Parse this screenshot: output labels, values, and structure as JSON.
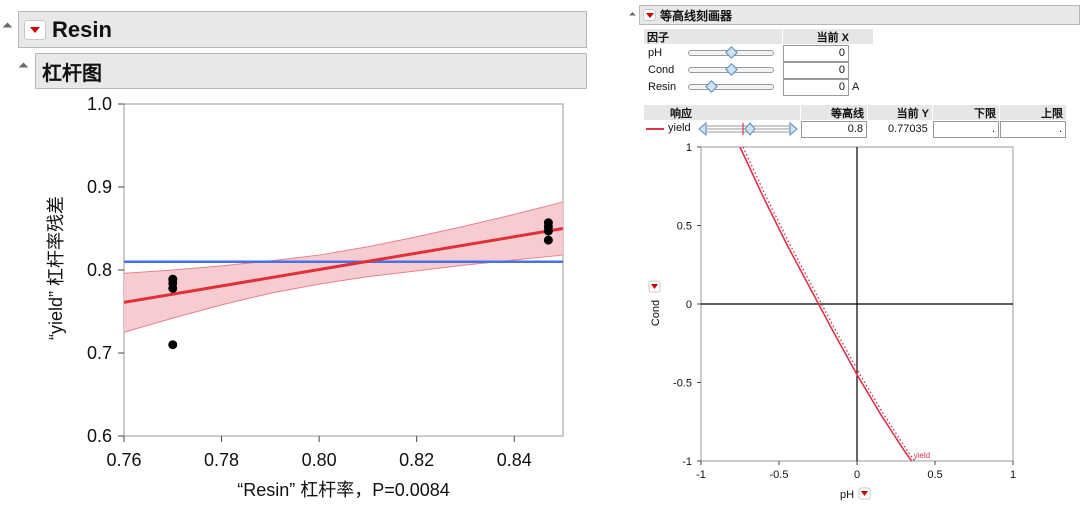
{
  "left": {
    "outline_title": "Resin",
    "sub_title": "杠杆图"
  },
  "right": {
    "outline_title": "等高线刻画器",
    "factor_table": {
      "header_factor": "因子",
      "header_current": "当前 X",
      "rows": [
        {
          "name": "pH",
          "value": "0",
          "unit": ""
        },
        {
          "name": "Cond",
          "value": "0",
          "unit": ""
        },
        {
          "name": "Resin",
          "value": "0",
          "unit": "A"
        }
      ]
    },
    "response_table": {
      "header_response": "响应",
      "header_contour": "等高线",
      "header_current_y": "当前 Y",
      "header_lower": "下限",
      "header_upper": "上限",
      "row": {
        "name": "yield",
        "contour": "0.8",
        "current_y": "0.77035",
        "lower": ".",
        "upper": "."
      }
    }
  },
  "chart_data": [
    {
      "type": "scatter",
      "title": "",
      "xlabel": "“Resin” 杠杆率，P=0.0084",
      "ylabel": "“yield” 杠杆率残差",
      "xlim": [
        0.76,
        0.85
      ],
      "ylim": [
        0.6,
        1.0
      ],
      "x_ticks": [
        "0.76",
        "0.78",
        "0.80",
        "0.82",
        "0.84"
      ],
      "y_ticks": [
        "0.6",
        "0.7",
        "0.8",
        "0.9",
        "1.0"
      ],
      "points": [
        {
          "x": 0.77,
          "y": 0.789
        },
        {
          "x": 0.77,
          "y": 0.784
        },
        {
          "x": 0.77,
          "y": 0.778
        },
        {
          "x": 0.77,
          "y": 0.71
        },
        {
          "x": 0.847,
          "y": 0.857
        },
        {
          "x": 0.847,
          "y": 0.852
        },
        {
          "x": 0.847,
          "y": 0.847
        },
        {
          "x": 0.847,
          "y": 0.836
        }
      ],
      "mean_line": {
        "y": 0.81,
        "color": "#4472e8"
      },
      "fit_line": {
        "x": [
          0.76,
          0.85
        ],
        "y": [
          0.761,
          0.85
        ],
        "color": "#e0303a"
      },
      "confidence_band": {
        "x": [
          0.76,
          0.77,
          0.78,
          0.79,
          0.8,
          0.81,
          0.82,
          0.83,
          0.84,
          0.85
        ],
        "upper": [
          0.796,
          0.8,
          0.805,
          0.811,
          0.818,
          0.828,
          0.84,
          0.853,
          0.867,
          0.882
        ],
        "lower": [
          0.725,
          0.742,
          0.758,
          0.772,
          0.783,
          0.792,
          0.799,
          0.806,
          0.812,
          0.818
        ],
        "color": "#f6c3c8"
      },
      "grid": false
    },
    {
      "type": "line",
      "title": "",
      "xlabel": "pH",
      "ylabel": "Cond",
      "xlim": [
        -1,
        1
      ],
      "ylim": [
        -1,
        1
      ],
      "x_ticks": [
        "-1",
        "-0.5",
        "0",
        "0.5",
        "1"
      ],
      "y_ticks": [
        "1",
        "0.5",
        "0",
        "-0.5",
        "-1"
      ],
      "crosshair": {
        "x": 0,
        "y": 0
      },
      "series": [
        {
          "name": "yield",
          "color": "#d9344a",
          "x": [
            -0.75,
            -0.6,
            -0.45,
            -0.3,
            -0.15,
            0.0,
            0.15,
            0.3,
            0.35
          ],
          "y": [
            1.0,
            0.68,
            0.38,
            0.1,
            -0.18,
            -0.45,
            -0.7,
            -0.93,
            -1.0
          ]
        }
      ],
      "grid": false
    }
  ]
}
